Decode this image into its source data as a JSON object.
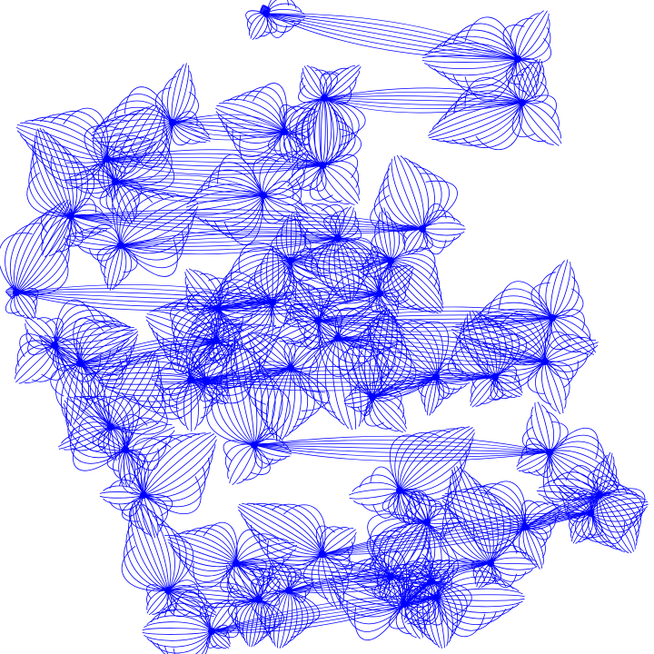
{
  "artwork": {
    "stroke_color": "#0000ff",
    "background_color": "#ffffff",
    "node_count": 54
  }
}
